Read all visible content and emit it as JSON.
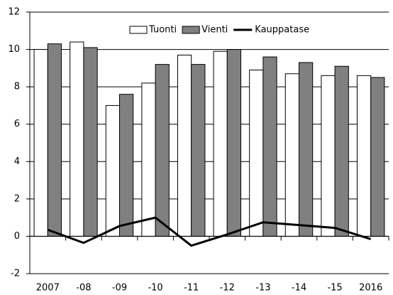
{
  "chart_data": {
    "type": "bar",
    "categories": [
      "2007",
      "-08",
      "-09",
      "-10",
      "-11",
      "-12",
      "-13",
      "-14",
      "-15",
      "2016"
    ],
    "series": [
      {
        "name": "Tuonti",
        "color": "#ffffff",
        "values": [
          10.0,
          10.4,
          7.0,
          8.2,
          9.7,
          9.9,
          8.9,
          8.7,
          8.6,
          8.6
        ]
      },
      {
        "name": "Vienti",
        "color": "#808080",
        "values": [
          10.3,
          10.1,
          7.6,
          9.2,
          9.2,
          10.0,
          9.6,
          9.3,
          9.1,
          8.5
        ]
      },
      {
        "name": "Kauppatase",
        "color": "#000000",
        "type": "line",
        "values": [
          0.35,
          -0.35,
          0.55,
          1.0,
          -0.5,
          0.1,
          0.75,
          0.6,
          0.45,
          -0.15
        ]
      }
    ],
    "ylim": [
      -2,
      12
    ],
    "yticks": [
      -2,
      0,
      2,
      4,
      6,
      8,
      10,
      12
    ],
    "grid": true,
    "legend": "top"
  }
}
